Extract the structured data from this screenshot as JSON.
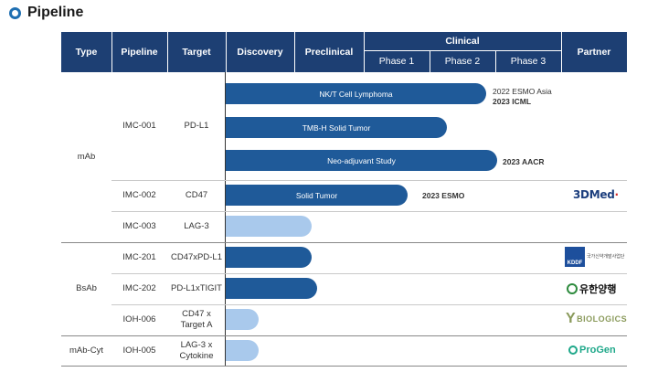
{
  "page": {
    "title": "Pipeline",
    "icon": "ring-icon"
  },
  "header": {
    "type": "Type",
    "pipeline": "Pipeline",
    "target": "Target",
    "discovery": "Discovery",
    "preclinical": "Preclinical",
    "clinical": "Clinical",
    "phase1": "Phase 1",
    "phase2": "Phase 2",
    "phase3": "Phase 3",
    "partner": "Partner"
  },
  "groups": [
    {
      "type": "mAb"
    },
    {
      "type": "BsAb"
    },
    {
      "type": "mAb-Cyt"
    }
  ],
  "rows": [
    {
      "pipeline": "IMC-001",
      "target": "PD-L1"
    },
    {
      "pipeline": "IMC-002",
      "target": "CD47"
    },
    {
      "pipeline": "IMC-003",
      "target": "LAG-3"
    },
    {
      "pipeline": "IMC-201",
      "target": "CD47xPD-L1"
    },
    {
      "pipeline": "IMC-202",
      "target": "PD-L1xTIGIT"
    },
    {
      "pipeline": "IOH-006",
      "target_line1": "CD47 x",
      "target_line2": "Target  A"
    },
    {
      "pipeline": "IOH-005",
      "target_line1": "LAG-3 x",
      "target_line2": "Cytokine"
    }
  ],
  "bars": [
    {
      "label": "NK/T Cell  Lymphoma",
      "stage": "Phase 3"
    },
    {
      "label": "TMB-H Solid Tumor",
      "stage": "Phase 2"
    },
    {
      "label": "Neo-adjuvant  Study",
      "stage": "Phase 3"
    },
    {
      "label": "Solid Tumor",
      "stage": "Phase 1"
    },
    {
      "label": "",
      "stage": "Preclinical"
    },
    {
      "label": "",
      "stage": "Preclinical"
    },
    {
      "label": "",
      "stage": "Preclinical"
    },
    {
      "label": "",
      "stage": "Discovery"
    },
    {
      "label": "",
      "stage": "Discovery"
    }
  ],
  "notes": {
    "n1_line1": "2022 ESMO Asia",
    "n1_line2": "2023  ICML",
    "n2": "2023  AACR",
    "n3": "2023  ESMO"
  },
  "partners": {
    "p1": "3DMed",
    "p2_box": "KDDF",
    "p2_text": "국가신약개발사업단",
    "p3": "유한양행",
    "p4": "BIOLOGICS",
    "p5": "ProGen"
  },
  "colors": {
    "header": "#1d3f73",
    "bar_dark": "#1f5a99",
    "bar_light": "#a9c9ec",
    "accent": "#1f6fb2"
  }
}
